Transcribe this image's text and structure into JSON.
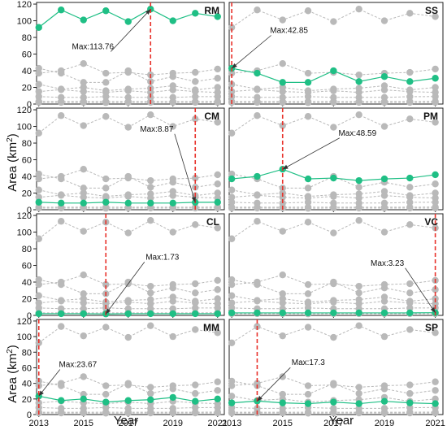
{
  "figure": {
    "xlabel": "Year",
    "ylabel_main": "Area (km",
    "ylabel_sup": "2",
    "ylabel_close": ")"
  },
  "chart_data": {
    "type": "line",
    "x": [
      2013,
      2014,
      2015,
      2016,
      2017,
      2018,
      2019,
      2020,
      2021
    ],
    "xticks": [
      2013,
      2015,
      2017,
      2019,
      2021
    ],
    "yticks": [
      0,
      20,
      40,
      60,
      80,
      100,
      120
    ],
    "ylim": [
      0,
      122
    ],
    "xlim": [
      2012.9,
      2021.3
    ],
    "grid": false,
    "colors": {
      "highlight": "#1fbf85",
      "background_series": "#b9b9b9",
      "max_marker": "#e8312a",
      "arrow": "#333333"
    },
    "series": [
      {
        "name": "RM",
        "values": [
          92,
          113,
          101,
          112,
          99,
          114,
          100,
          109,
          105
        ]
      },
      {
        "name": "SS",
        "values": [
          42.85,
          37,
          26,
          26,
          40,
          27,
          33,
          27,
          31
        ]
      },
      {
        "name": "CM",
        "values": [
          9,
          8,
          8,
          9,
          8,
          8,
          8,
          8.87,
          9
        ]
      },
      {
        "name": "PM",
        "values": [
          37,
          40,
          48.59,
          37,
          38,
          35,
          37,
          38,
          42
        ]
      },
      {
        "name": "CL",
        "values": [
          2,
          2,
          2,
          1.73,
          2,
          2,
          2,
          2,
          2
        ]
      },
      {
        "name": "VC",
        "values": [
          3,
          3,
          3,
          3,
          3,
          3,
          3,
          3,
          3.23
        ]
      },
      {
        "name": "MM",
        "values": [
          23.67,
          18,
          20,
          16,
          18,
          19,
          22,
          17,
          20
        ]
      },
      {
        "name": "SP",
        "values": [
          15,
          17.3,
          15,
          14,
          16,
          14,
          17,
          15,
          14
        ]
      }
    ],
    "panels": [
      {
        "label": "RM",
        "highlight": 0,
        "max_year": 2018,
        "max_text": "Max:113.76",
        "max_value": 113.76
      },
      {
        "label": "SS",
        "highlight": 1,
        "max_year": 2013,
        "max_text": "Max:42.85",
        "max_value": 42.85
      },
      {
        "label": "CM",
        "highlight": 2,
        "max_year": 2020,
        "max_text": "Max:8.87",
        "max_value": 8.87
      },
      {
        "label": "PM",
        "highlight": 3,
        "max_year": 2015,
        "max_text": "Max:48.59",
        "max_value": 48.59
      },
      {
        "label": "CL",
        "highlight": 4,
        "max_year": 2016,
        "max_text": "Max:1.73",
        "max_value": 1.73
      },
      {
        "label": "VC",
        "highlight": 5,
        "max_year": 2021,
        "max_text": "Max:3.23",
        "max_value": 3.23
      },
      {
        "label": "MM",
        "highlight": 6,
        "max_year": 2013,
        "max_text": "Max:23.67",
        "max_value": 23.67
      },
      {
        "label": "SP",
        "highlight": 7,
        "max_year": 2014,
        "max_text": "Max:17.3",
        "max_value": 17.3
      }
    ]
  }
}
